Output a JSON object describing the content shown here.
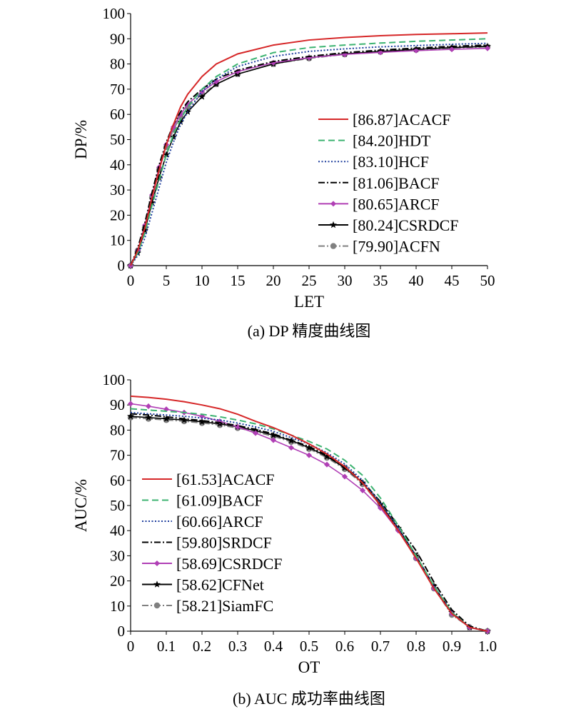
{
  "chart_data": [
    {
      "type": "line",
      "caption": "(a) DP 精度曲线图",
      "xlabel": "LET",
      "ylabel": "DP/%",
      "xlim": [
        0,
        50
      ],
      "ylim": [
        0,
        100
      ],
      "x_ticks": [
        "0",
        "5",
        "10",
        "15",
        "20",
        "25",
        "30",
        "35",
        "40",
        "45",
        "50"
      ],
      "y_ticks": [
        "0",
        "10",
        "20",
        "30",
        "40",
        "50",
        "60",
        "70",
        "80",
        "90",
        "100"
      ],
      "grid": false,
      "legend_position": "center-right",
      "series": [
        {
          "name": "[86.87]ACACF",
          "color": "#d62728",
          "style": "solid",
          "marker": "none",
          "x": [
            0,
            1,
            2,
            3,
            4,
            5,
            6,
            7,
            8,
            10,
            12,
            15,
            20,
            25,
            30,
            35,
            40,
            45,
            50
          ],
          "y": [
            0,
            6,
            15,
            27,
            38,
            48,
            56,
            63,
            68,
            75,
            80,
            84,
            87.5,
            89.5,
            90.5,
            91.2,
            91.7,
            92,
            92.3
          ]
        },
        {
          "name": "[84.20]HDT",
          "color": "#3cb371",
          "style": "dashed",
          "marker": "none",
          "x": [
            0,
            1,
            2,
            3,
            4,
            5,
            6,
            7,
            8,
            10,
            12,
            15,
            20,
            25,
            30,
            35,
            40,
            45,
            50
          ],
          "y": [
            0,
            5,
            13,
            24,
            34,
            44,
            52,
            58,
            63,
            70,
            75,
            80,
            84.5,
            86.5,
            87.5,
            88.3,
            89,
            89.5,
            90
          ]
        },
        {
          "name": "[83.10]HCF",
          "color": "#1f3f9e",
          "style": "dotted",
          "marker": "none",
          "x": [
            0,
            1,
            2,
            3,
            4,
            5,
            6,
            7,
            8,
            10,
            12,
            15,
            20,
            25,
            30,
            35,
            40,
            45,
            50
          ],
          "y": [
            0,
            4,
            11,
            21,
            31,
            41,
            49,
            56,
            61,
            69,
            74,
            79,
            83,
            85,
            86,
            86.8,
            87.3,
            87.8,
            88.2
          ]
        },
        {
          "name": "[81.06]BACF",
          "color": "#000000",
          "style": "dashdot",
          "marker": "none",
          "x": [
            0,
            1,
            2,
            3,
            4,
            5,
            6,
            7,
            8,
            10,
            12,
            15,
            20,
            25,
            30,
            35,
            40,
            45,
            50
          ],
          "y": [
            0,
            7,
            17,
            29,
            40,
            49,
            56,
            61,
            65,
            70,
            74,
            77.5,
            81,
            83,
            84.5,
            85.5,
            86.3,
            87,
            87.5
          ]
        },
        {
          "name": "[80.65]ARCF",
          "color": "#b03fb5",
          "style": "solid",
          "marker": "diamond",
          "x": [
            0,
            1,
            2,
            3,
            4,
            5,
            6,
            7,
            8,
            10,
            12,
            15,
            20,
            25,
            30,
            35,
            40,
            45,
            50
          ],
          "y": [
            0,
            6,
            16,
            28,
            39,
            48,
            55,
            60,
            64,
            69,
            73,
            77,
            80.5,
            82.5,
            83.8,
            84.6,
            85.3,
            85.8,
            86.2
          ]
        },
        {
          "name": "[80.24]CSRDCF",
          "color": "#000000",
          "style": "solid",
          "marker": "star",
          "x": [
            0,
            1,
            2,
            3,
            4,
            5,
            6,
            7,
            8,
            10,
            12,
            15,
            20,
            25,
            30,
            35,
            40,
            45,
            50
          ],
          "y": [
            0,
            5,
            14,
            25,
            35,
            44,
            51,
            57,
            61,
            67,
            72,
            76,
            80,
            82.5,
            84,
            85,
            85.8,
            86.5,
            87
          ]
        },
        {
          "name": "[79.90]ACFN",
          "color": "#808080",
          "style": "dashdot",
          "marker": "circle",
          "x": [
            0,
            1,
            2,
            3,
            4,
            5,
            6,
            7,
            8,
            10,
            12,
            15,
            20,
            25,
            30,
            35,
            40,
            45,
            50
          ],
          "y": [
            0,
            6,
            15,
            27,
            38,
            47,
            54,
            59,
            63,
            68,
            72,
            76,
            80,
            82.2,
            83.8,
            84.8,
            85.6,
            86.3,
            86.8
          ]
        }
      ]
    },
    {
      "type": "line",
      "caption": "(b) AUC 成功率曲线图",
      "xlabel": "OT",
      "ylabel": "AUC/%",
      "xlim": [
        0,
        1
      ],
      "ylim": [
        0,
        100
      ],
      "x_ticks": [
        "0",
        "0.1",
        "0.2",
        "0.3",
        "0.4",
        "0.5",
        "0.6",
        "0.7",
        "0.8",
        "0.9",
        "1.0"
      ],
      "y_ticks": [
        "0",
        "10",
        "20",
        "30",
        "40",
        "50",
        "60",
        "70",
        "80",
        "90",
        "100"
      ],
      "grid": false,
      "legend_position": "center-left",
      "series": [
        {
          "name": "[61.53]ACACF",
          "color": "#d62728",
          "style": "solid",
          "marker": "none",
          "x": [
            0,
            0.05,
            0.1,
            0.15,
            0.2,
            0.25,
            0.3,
            0.35,
            0.4,
            0.45,
            0.5,
            0.55,
            0.6,
            0.65,
            0.7,
            0.75,
            0.8,
            0.85,
            0.9,
            0.95,
            1.0
          ],
          "y": [
            93.5,
            93,
            92.3,
            91.3,
            90,
            88.5,
            86.3,
            83.5,
            81,
            78,
            74.5,
            70.5,
            65.5,
            59,
            50,
            40,
            29,
            17,
            7,
            1.5,
            0
          ]
        },
        {
          "name": "[61.09]BACF",
          "color": "#3cb371",
          "style": "dashed",
          "marker": "none",
          "x": [
            0,
            0.05,
            0.1,
            0.15,
            0.2,
            0.25,
            0.3,
            0.35,
            0.4,
            0.45,
            0.5,
            0.55,
            0.6,
            0.65,
            0.7,
            0.75,
            0.8,
            0.85,
            0.9,
            0.95,
            1.0
          ],
          "y": [
            88.5,
            88,
            87.5,
            87,
            86.3,
            85.3,
            84,
            82.5,
            80.5,
            78,
            75.5,
            72.5,
            68,
            62,
            53,
            42,
            30,
            18,
            7.5,
            1.5,
            0
          ]
        },
        {
          "name": "[60.66]ARCF",
          "color": "#1f3f9e",
          "style": "dotted",
          "marker": "none",
          "x": [
            0,
            0.05,
            0.1,
            0.15,
            0.2,
            0.25,
            0.3,
            0.35,
            0.4,
            0.45,
            0.5,
            0.55,
            0.6,
            0.65,
            0.7,
            0.75,
            0.8,
            0.85,
            0.9,
            0.95,
            1.0
          ],
          "y": [
            87,
            86.5,
            86,
            85.5,
            84.8,
            84,
            82.8,
            81.3,
            79.5,
            77,
            74.5,
            71,
            66.5,
            60,
            51,
            41,
            30,
            18,
            7.5,
            1.5,
            0
          ]
        },
        {
          "name": "[59.80]SRDCF",
          "color": "#000000",
          "style": "dashdot",
          "marker": "none",
          "x": [
            0,
            0.05,
            0.1,
            0.15,
            0.2,
            0.25,
            0.3,
            0.35,
            0.4,
            0.45,
            0.5,
            0.55,
            0.6,
            0.65,
            0.7,
            0.75,
            0.8,
            0.85,
            0.9,
            0.95,
            1.0
          ],
          "y": [
            86.5,
            86,
            85.3,
            84.5,
            83.8,
            83,
            81.8,
            80.3,
            78.5,
            76,
            73.5,
            70,
            65.5,
            59.5,
            51.5,
            42,
            32,
            19.5,
            8.5,
            2,
            0
          ]
        },
        {
          "name": "[58.69]CSRDCF",
          "color": "#b03fb5",
          "style": "solid",
          "marker": "diamond",
          "x": [
            0,
            0.05,
            0.1,
            0.15,
            0.2,
            0.25,
            0.3,
            0.35,
            0.4,
            0.45,
            0.5,
            0.55,
            0.6,
            0.65,
            0.7,
            0.75,
            0.8,
            0.85,
            0.9,
            0.95,
            1.0
          ],
          "y": [
            90.5,
            89.5,
            88.3,
            87,
            85.5,
            83.5,
            81.3,
            78.8,
            76,
            73,
            70,
            66.3,
            61.5,
            56,
            49,
            40,
            29,
            17,
            7,
            1.5,
            0
          ]
        },
        {
          "name": "[58.62]CFNet",
          "color": "#000000",
          "style": "solid",
          "marker": "star",
          "x": [
            0,
            0.05,
            0.1,
            0.15,
            0.2,
            0.25,
            0.3,
            0.35,
            0.4,
            0.45,
            0.5,
            0.55,
            0.6,
            0.65,
            0.7,
            0.75,
            0.8,
            0.85,
            0.9,
            0.95,
            1.0
          ],
          "y": [
            85.5,
            85,
            84.5,
            84,
            83.3,
            82.5,
            81.3,
            79.8,
            78,
            75.8,
            73,
            69.5,
            65,
            59,
            50.5,
            41,
            30,
            18,
            7.5,
            1.5,
            0
          ]
        },
        {
          "name": "[58.21]SiamFC",
          "color": "#808080",
          "style": "dashdot",
          "marker": "circle",
          "x": [
            0,
            0.05,
            0.1,
            0.15,
            0.2,
            0.25,
            0.3,
            0.35,
            0.4,
            0.45,
            0.5,
            0.55,
            0.6,
            0.65,
            0.7,
            0.75,
            0.8,
            0.85,
            0.9,
            0.95,
            1.0
          ],
          "y": [
            85,
            84.5,
            84,
            83.5,
            82.8,
            82,
            80.8,
            79.3,
            77.5,
            75.3,
            72.5,
            69,
            64.5,
            58.5,
            50,
            40.5,
            29,
            17,
            6.5,
            1.5,
            0
          ]
        }
      ]
    }
  ]
}
